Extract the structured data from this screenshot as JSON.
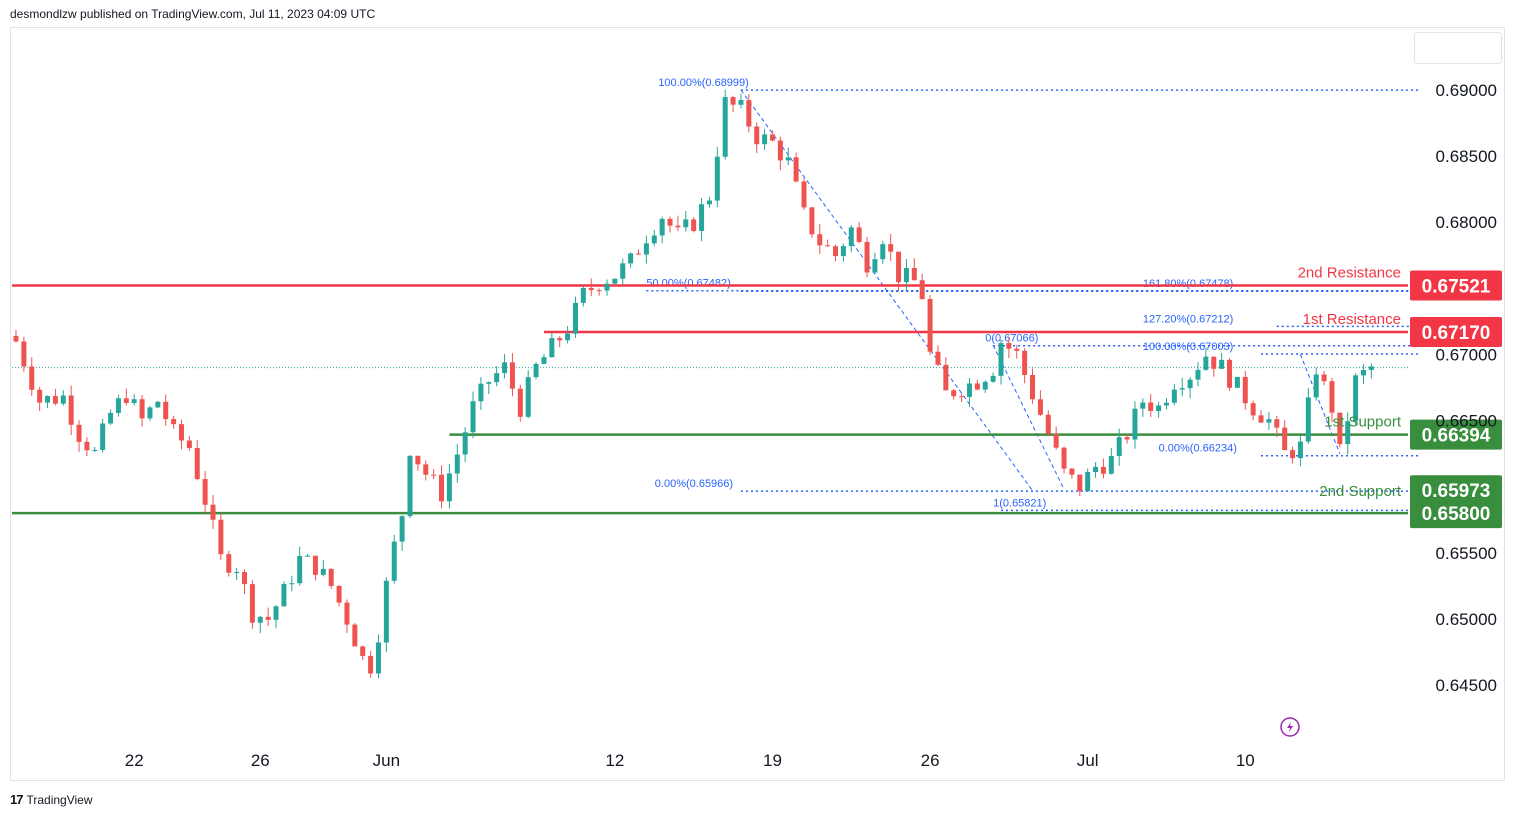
{
  "header": {
    "text": "desmondlzw published on TradingView.com, Jul 11, 2023 04:09 UTC"
  },
  "footer": {
    "logo_mark": "17",
    "logo_text": "TradingView"
  },
  "colors": {
    "up": "#26a69a",
    "down": "#ef5350",
    "resistance": "#f23645",
    "support": "#388e3c",
    "fib": "#2962ff",
    "grid_text": "#131722"
  },
  "chart_data": {
    "type": "candlestick",
    "y_axis": {
      "range": [
        0.6425,
        0.6925
      ],
      "ticks": [
        "0.69000",
        "0.68500",
        "0.68000",
        "0.67000",
        "0.66500",
        "0.65500",
        "0.65000",
        "0.64500"
      ]
    },
    "x_axis": {
      "ticks": [
        {
          "label": "22",
          "bar": 15
        },
        {
          "label": "26",
          "bar": 31
        },
        {
          "label": "Jun",
          "bar": 47
        },
        {
          "label": "12",
          "bar": 76
        },
        {
          "label": "19",
          "bar": 96
        },
        {
          "label": "26",
          "bar": 116
        },
        {
          "label": "Jul",
          "bar": 136
        },
        {
          "label": "10",
          "bar": 156
        }
      ]
    },
    "levels": [
      {
        "name": "2nd Resistance",
        "value": 0.67521,
        "label": "0.67521",
        "kind": "resistance"
      },
      {
        "name": "1st Resistance",
        "value": 0.6717,
        "label": "0.67170",
        "kind": "resistance"
      },
      {
        "name": "1st Support",
        "value": 0.66394,
        "label": "0.66394",
        "kind": "support"
      },
      {
        "name": "2nd Support",
        "value": 0.658,
        "label": "0.65800",
        "kind": "support"
      }
    ],
    "extra_price_tag": {
      "value": 0.65973,
      "label": "0.65973",
      "kind": "support"
    },
    "fib_labels": [
      {
        "text": "100.00%(0.68999)",
        "value": 0.68999
      },
      {
        "text": "50.00%(0.67482)",
        "value": 0.67482
      },
      {
        "text": "161.80%(0.67478)",
        "value": 0.67478
      },
      {
        "text": "127.20%(0.67212)",
        "value": 0.67212
      },
      {
        "text": "0(0.67066)",
        "value": 0.67066
      },
      {
        "text": "100.00%(0.67003)",
        "value": 0.67003
      },
      {
        "text": "0.00%(0.66234)",
        "value": 0.66234
      },
      {
        "text": "0.00%(0.65966)",
        "value": 0.65966
      },
      {
        "text": "1(0.65821)",
        "value": 0.65821
      }
    ],
    "series": [
      {
        "name": "",
        "anchors": [
          [
            0,
            0.671
          ],
          [
            3,
            0.6665
          ],
          [
            6,
            0.6668
          ],
          [
            8,
            0.664
          ],
          [
            10,
            0.6625
          ],
          [
            12,
            0.6655
          ],
          [
            14,
            0.667
          ],
          [
            16,
            0.665
          ],
          [
            18,
            0.6665
          ],
          [
            20,
            0.664
          ],
          [
            22,
            0.663
          ],
          [
            24,
            0.659
          ],
          [
            26,
            0.6545
          ],
          [
            28,
            0.654
          ],
          [
            30,
            0.6505
          ],
          [
            32,
            0.65
          ],
          [
            34,
            0.652
          ],
          [
            36,
            0.6545
          ],
          [
            38,
            0.654
          ],
          [
            40,
            0.6525
          ],
          [
            42,
            0.65
          ],
          [
            44,
            0.647
          ],
          [
            45,
            0.6465
          ],
          [
            46,
            0.649
          ],
          [
            47,
            0.6525
          ],
          [
            48,
            0.6555
          ],
          [
            49,
            0.658
          ],
          [
            50,
            0.663
          ],
          [
            52,
            0.661
          ],
          [
            54,
            0.6595
          ],
          [
            56,
            0.6625
          ],
          [
            58,
            0.666
          ],
          [
            60,
            0.668
          ],
          [
            62,
            0.669
          ],
          [
            64,
            0.666
          ],
          [
            66,
            0.669
          ],
          [
            68,
            0.6705
          ],
          [
            70,
            0.672
          ],
          [
            72,
            0.6745
          ],
          [
            74,
            0.6755
          ],
          [
            76,
            0.676
          ],
          [
            78,
            0.677
          ],
          [
            80,
            0.679
          ],
          [
            82,
            0.6805
          ],
          [
            84,
            0.679
          ],
          [
            86,
            0.68
          ],
          [
            88,
            0.682
          ],
          [
            90,
            0.689
          ],
          [
            92,
            0.6885
          ],
          [
            94,
            0.6865
          ],
          [
            96,
            0.686
          ],
          [
            98,
            0.6845
          ],
          [
            100,
            0.6805
          ],
          [
            102,
            0.6785
          ],
          [
            104,
            0.6775
          ],
          [
            106,
            0.6795
          ],
          [
            108,
            0.677
          ],
          [
            110,
            0.679
          ],
          [
            112,
            0.676
          ],
          [
            114,
            0.6755
          ],
          [
            115,
            0.6745
          ],
          [
            116,
            0.67
          ],
          [
            118,
            0.667
          ],
          [
            120,
            0.6675
          ],
          [
            122,
            0.668
          ],
          [
            124,
            0.669
          ],
          [
            125,
            0.671
          ],
          [
            127,
            0.67
          ],
          [
            129,
            0.667
          ],
          [
            131,
            0.664
          ],
          [
            133,
            0.661
          ],
          [
            135,
            0.66
          ],
          [
            137,
            0.6615
          ],
          [
            139,
            0.662
          ],
          [
            141,
            0.664
          ],
          [
            143,
            0.6665
          ],
          [
            145,
            0.666
          ],
          [
            147,
            0.668
          ],
          [
            149,
            0.6685
          ],
          [
            151,
            0.67
          ],
          [
            153,
            0.669
          ],
          [
            155,
            0.6675
          ],
          [
            157,
            0.666
          ],
          [
            159,
            0.665
          ],
          [
            161,
            0.6625
          ],
          [
            163,
            0.663
          ],
          [
            165,
            0.669
          ],
          [
            167,
            0.666
          ],
          [
            168,
            0.6625
          ],
          [
            170,
            0.668
          ],
          [
            172,
            0.669
          ]
        ]
      }
    ]
  }
}
